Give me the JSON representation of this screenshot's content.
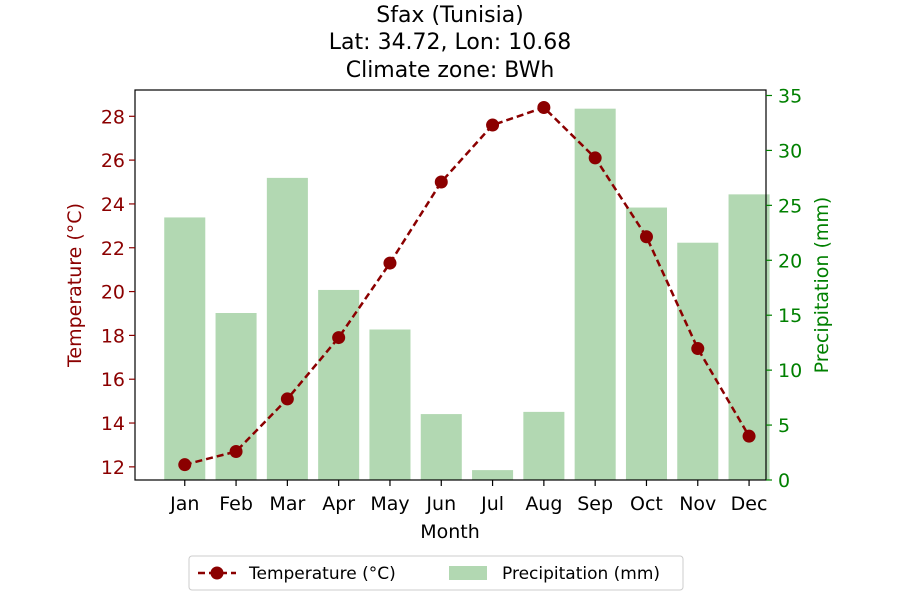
{
  "chart_data": {
    "type": "bar+line",
    "title_lines": [
      "Sfax (Tunisia)",
      "Lat: 34.72, Lon: 10.68",
      "Climate zone: BWh"
    ],
    "xlabel": "Month",
    "categories": [
      "Jan",
      "Feb",
      "Mar",
      "Apr",
      "May",
      "Jun",
      "Jul",
      "Aug",
      "Sep",
      "Oct",
      "Nov",
      "Dec"
    ],
    "series": [
      {
        "name": "Temperature (°C)",
        "kind": "line",
        "axis": "left",
        "values": [
          12.1,
          12.7,
          15.1,
          17.9,
          21.3,
          25.0,
          27.6,
          28.4,
          26.1,
          22.5,
          17.4,
          13.4
        ]
      },
      {
        "name": "Precipitation (mm)",
        "kind": "bar",
        "axis": "right",
        "values": [
          23.9,
          15.2,
          27.5,
          17.3,
          13.7,
          6.0,
          0.9,
          6.2,
          33.8,
          24.8,
          21.6,
          26.0
        ]
      }
    ],
    "y_left": {
      "label": "Temperature (°C)",
      "lim": [
        11.4,
        29.2
      ],
      "ticks": [
        12,
        14,
        16,
        18,
        20,
        22,
        24,
        26,
        28
      ]
    },
    "y_right": {
      "label": "Precipitation (mm)",
      "lim": [
        0,
        35.5
      ],
      "ticks": [
        0,
        5,
        10,
        15,
        20,
        25,
        30,
        35
      ]
    },
    "grid": false,
    "legend_position": "bottom-center",
    "colors": {
      "temperature": "#8b0000",
      "precipitation_bar": "#b2d8b2",
      "precipitation_axis": "#008000",
      "axis": "#000000"
    }
  }
}
